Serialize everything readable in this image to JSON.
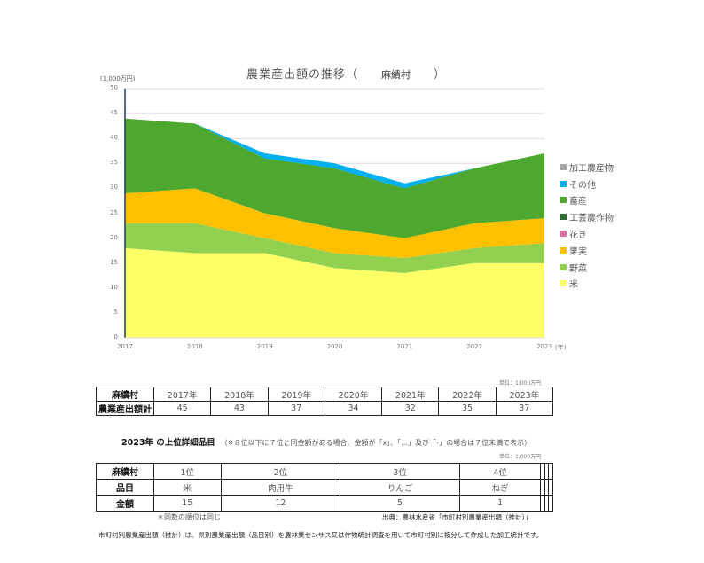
{
  "chart": {
    "title_prefix": "農業産出額の推移（",
    "municipality": "麻績村",
    "title_suffix": "）",
    "y_unit": "(1,000万円)",
    "x_unit": "(年)",
    "y_ticks": [
      "50",
      "45",
      "40",
      "35",
      "30",
      "25",
      "20",
      "15",
      "10",
      "5",
      "0"
    ],
    "x_ticks": [
      "2017",
      "2018",
      "2019",
      "2020",
      "2021",
      "2022",
      "2023"
    ]
  },
  "legend": [
    {
      "label": "加工農産物",
      "color": "#a6a6a6"
    },
    {
      "label": "その他",
      "color": "#00b0f0"
    },
    {
      "label": "畜産",
      "color": "#4ea72e"
    },
    {
      "label": "工芸農作物",
      "color": "#2e6b2e"
    },
    {
      "label": "花き",
      "color": "#e06ca0"
    },
    {
      "label": "果実",
      "color": "#ffc000"
    },
    {
      "label": "野菜",
      "color": "#92d050"
    },
    {
      "label": "米",
      "color": "#ffff66"
    }
  ],
  "chart_data": {
    "type": "area",
    "stacked": true,
    "title": "農業産出額の推移（ 麻績村 ）",
    "xlabel": "(年)",
    "ylabel": "(1,000万円)",
    "ylim": [
      0,
      50
    ],
    "grid": true,
    "legend_position": "right",
    "categories": [
      "2017",
      "2018",
      "2019",
      "2020",
      "2021",
      "2022",
      "2023"
    ],
    "series": [
      {
        "name": "米",
        "color": "#ffff66",
        "values": [
          18,
          17,
          17,
          14,
          13,
          15,
          15
        ]
      },
      {
        "name": "野菜",
        "color": "#92d050",
        "values": [
          5,
          6,
          3,
          3,
          3,
          3,
          4
        ]
      },
      {
        "name": "果実",
        "color": "#ffc000",
        "values": [
          6,
          7,
          5,
          5,
          4,
          5,
          5
        ]
      },
      {
        "name": "花き",
        "color": "#e06ca0",
        "values": [
          0,
          0,
          0,
          0,
          0,
          0,
          0
        ]
      },
      {
        "name": "工芸農作物",
        "color": "#2e6b2e",
        "values": [
          0,
          0,
          0,
          0,
          0,
          0,
          0
        ]
      },
      {
        "name": "畜産",
        "color": "#4ea72e",
        "values": [
          15,
          13,
          11,
          12,
          10,
          11,
          13
        ]
      },
      {
        "name": "その他",
        "color": "#00b0f0",
        "values": [
          0,
          0,
          1,
          1,
          1,
          0,
          0
        ]
      },
      {
        "name": "加工農産物",
        "color": "#a6a6a6",
        "values": [
          0,
          0,
          0,
          0,
          0,
          0,
          0
        ]
      }
    ]
  },
  "summary_table": {
    "unit": "単位：1,000万円",
    "header_label": "麻績村",
    "row_label": "農業産出額計",
    "years": [
      "2017年",
      "2018年",
      "2019年",
      "2020年",
      "2021年",
      "2022年",
      "2023年"
    ],
    "values": [
      "45",
      "43",
      "37",
      "34",
      "32",
      "35",
      "37"
    ]
  },
  "detail": {
    "title": "2023年 の上位詳細品目",
    "note": "（※８位以下に７位と同金額がある場合、金額が「x」、「…」及び「-」の場合は７位未満で表示）",
    "unit": "単位：1,000万円",
    "header_label": "麻績村",
    "item_label": "品目",
    "amount_label": "金額",
    "ranks": [
      "1位",
      "2位",
      "3位",
      "4位",
      "",
      "",
      ""
    ],
    "items": [
      "米",
      "肉用牛",
      "りんご",
      "ねぎ",
      "",
      "",
      ""
    ],
    "amounts": [
      "15",
      "12",
      "5",
      "1",
      "",
      "",
      ""
    ],
    "rank_note": "＊同数の順位は同じ",
    "source": "出典：農林水産省「市町村別農業産出額（推計）」"
  },
  "footnote": "市町村別農業産出額（推計）は、県別農業産出額（品目別）を農林業センサス又は作物統計調査を用いて市町村別に按分して作成した加工統計です。"
}
